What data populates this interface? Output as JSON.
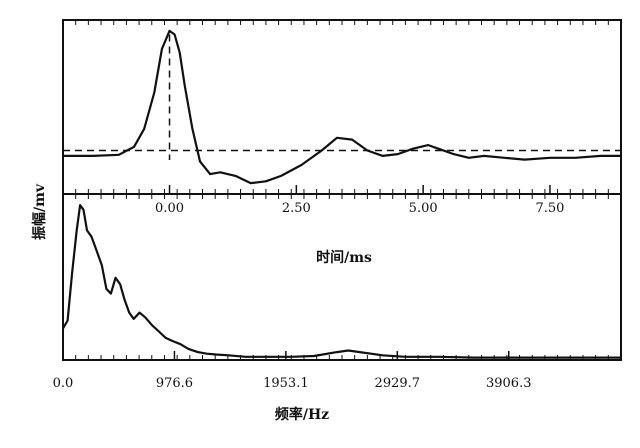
{
  "chart_data": [
    {
      "type": "line",
      "panel": "top",
      "ylabel": "振幅/mv",
      "xlabel": "时间/ms",
      "x_ticks": [
        "0.00",
        "2.50",
        "5.00",
        "7.50"
      ],
      "x_tick_values": [
        0,
        2.5,
        5,
        7.5
      ],
      "xlim": [
        -2.1,
        8.9
      ],
      "ylim": [
        -1.2,
        3.6
      ],
      "baseline_dashed": 0,
      "vertical_dashed_at": 0,
      "series": [
        {
          "x": [
            -2.1,
            -1.5,
            -1.0,
            -0.7,
            -0.5,
            -0.3,
            -0.15,
            0.0,
            0.1,
            0.2,
            0.3,
            0.45,
            0.6,
            0.8,
            1.0,
            1.3,
            1.6,
            1.9,
            2.2,
            2.6,
            3.0,
            3.3,
            3.6,
            3.9,
            4.2,
            4.5,
            4.8,
            5.1,
            5.3,
            5.6,
            5.9,
            6.2,
            6.6,
            7.0,
            7.5,
            8.0,
            8.5,
            8.9
          ],
          "y": [
            -0.15,
            -0.15,
            -0.12,
            0.1,
            0.6,
            1.6,
            2.8,
            3.3,
            3.2,
            2.7,
            1.8,
            0.6,
            -0.3,
            -0.65,
            -0.6,
            -0.7,
            -0.9,
            -0.85,
            -0.7,
            -0.4,
            0.0,
            0.35,
            0.3,
            0.0,
            -0.15,
            -0.1,
            0.05,
            0.15,
            0.05,
            -0.1,
            -0.2,
            -0.15,
            -0.2,
            -0.25,
            -0.2,
            -0.2,
            -0.15,
            -0.15
          ]
        }
      ]
    },
    {
      "type": "line",
      "panel": "bottom",
      "ylabel": "振幅/mv",
      "xlabel": "频率/Hz",
      "x_ticks": [
        "0.0",
        "976.6",
        "1953.1",
        "2929.7",
        "3906.3"
      ],
      "x_tick_values": [
        0,
        976.6,
        1953.1,
        2929.7,
        3906.3
      ],
      "xlim": [
        0,
        4890
      ],
      "ylim": [
        0,
        1.05
      ],
      "series": [
        {
          "x": [
            0,
            40,
            80,
            120,
            150,
            180,
            210,
            250,
            290,
            340,
            380,
            420,
            460,
            500,
            540,
            580,
            620,
            670,
            720,
            780,
            840,
            900,
            960,
            1030,
            1100,
            1180,
            1260,
            1340,
            1450,
            1600,
            1800,
            2000,
            2200,
            2400,
            2500,
            2600,
            2700,
            2800,
            3000,
            3300,
            3600,
            3900,
            4200,
            4500,
            4890
          ],
          "y": [
            0.2,
            0.25,
            0.55,
            0.82,
            0.98,
            0.95,
            0.82,
            0.78,
            0.7,
            0.6,
            0.45,
            0.42,
            0.52,
            0.48,
            0.38,
            0.3,
            0.26,
            0.3,
            0.27,
            0.22,
            0.18,
            0.14,
            0.12,
            0.1,
            0.07,
            0.05,
            0.04,
            0.035,
            0.03,
            0.02,
            0.02,
            0.02,
            0.025,
            0.05,
            0.06,
            0.05,
            0.04,
            0.03,
            0.02,
            0.02,
            0.015,
            0.015,
            0.015,
            0.015,
            0.015
          ]
        }
      ]
    }
  ]
}
